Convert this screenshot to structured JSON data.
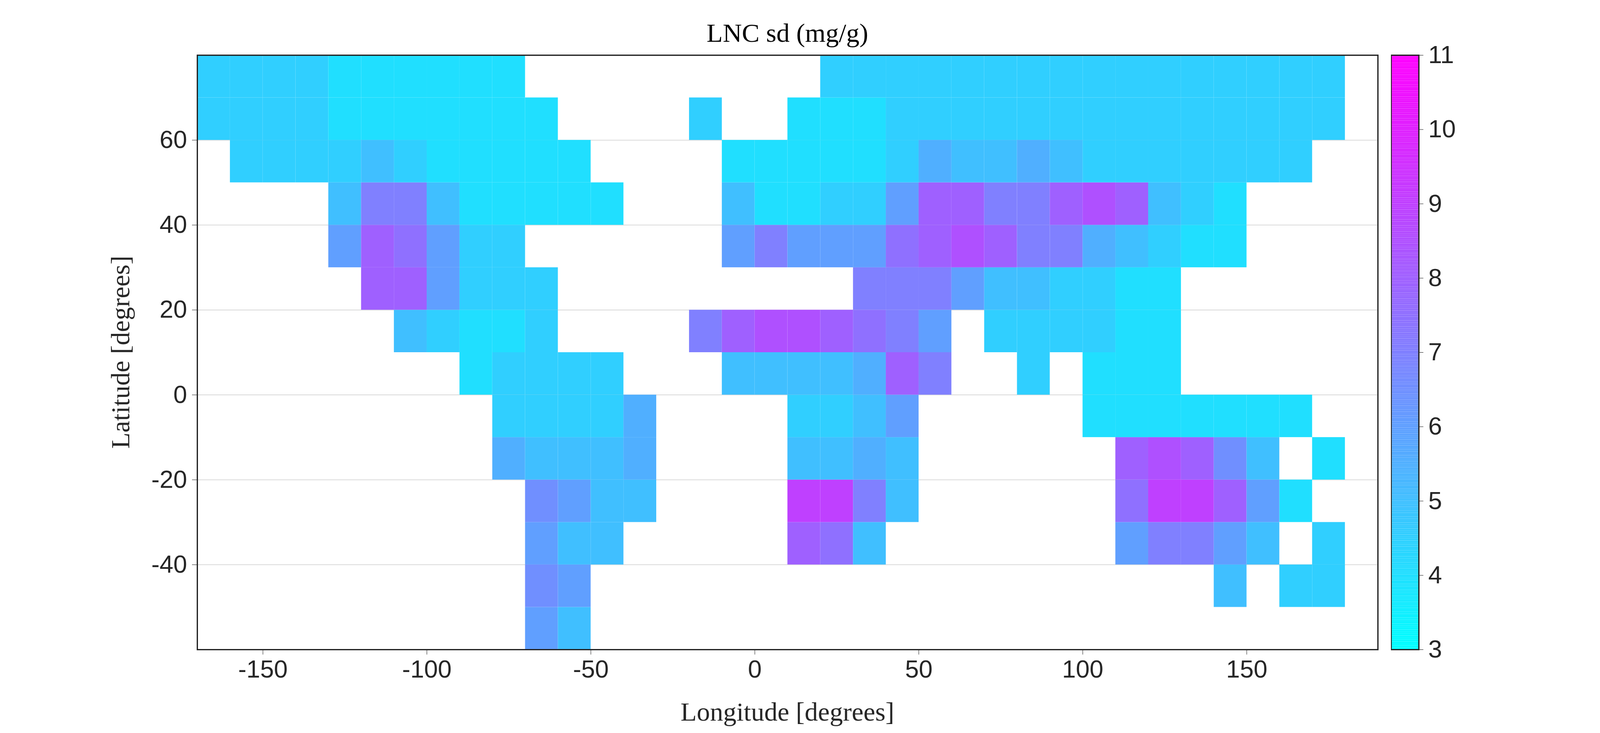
{
  "chart_data": {
    "type": "heatmap",
    "title": "LNC sd (mg/g)",
    "x_label": "Longitude [degrees]",
    "y_label": "Latitude [degrees]",
    "xlim": [
      -170,
      190
    ],
    "ylim": [
      -60,
      80
    ],
    "xticks": [
      -150,
      -100,
      -50,
      0,
      50,
      100,
      150
    ],
    "yticks": [
      -40,
      -20,
      0,
      20,
      40,
      60
    ],
    "grid": "y",
    "cells": {
      "x_bins": [
        -170,
        -160,
        -150,
        -140,
        -130,
        -120,
        -110,
        -100,
        -90,
        -80,
        -70,
        -60,
        -50,
        -40,
        -30,
        -20,
        -10,
        0,
        10,
        20,
        30,
        40,
        50,
        60,
        70,
        80,
        90,
        100,
        110,
        120,
        130,
        140,
        150,
        160,
        170,
        180,
        190
      ],
      "y_bins": [
        -60,
        -50,
        -40,
        -30,
        -20,
        -10,
        0,
        10,
        20,
        30,
        40,
        50,
        60,
        70,
        80
      ],
      "values": [
        [
          null,
          null,
          null,
          null,
          null,
          null,
          null,
          null,
          null,
          null,
          6,
          5,
          null,
          null,
          null,
          null,
          null,
          null,
          null,
          null,
          null,
          null,
          null,
          null,
          null,
          null,
          null,
          null,
          null,
          null,
          null,
          null,
          null,
          null,
          null,
          null
        ],
        [
          null,
          null,
          null,
          null,
          null,
          null,
          null,
          null,
          null,
          null,
          6.5,
          6,
          null,
          null,
          null,
          null,
          null,
          null,
          null,
          null,
          null,
          null,
          null,
          null,
          null,
          null,
          null,
          null,
          null,
          null,
          null,
          5,
          null,
          4.5,
          4.5,
          null
        ],
        [
          null,
          null,
          null,
          null,
          null,
          null,
          null,
          null,
          null,
          null,
          6,
          5,
          5,
          null,
          null,
          null,
          null,
          null,
          8,
          7.5,
          5,
          null,
          null,
          null,
          null,
          null,
          null,
          null,
          6,
          7,
          7,
          6,
          5,
          null,
          4.5,
          null
        ],
        [
          null,
          null,
          null,
          null,
          null,
          null,
          null,
          null,
          null,
          null,
          6.5,
          6,
          5,
          5,
          null,
          null,
          null,
          null,
          9,
          9,
          7,
          5,
          null,
          null,
          null,
          null,
          null,
          null,
          7.5,
          9,
          9,
          8,
          6,
          4,
          null,
          null
        ],
        [
          null,
          null,
          null,
          null,
          null,
          null,
          null,
          null,
          null,
          5.5,
          5,
          5,
          5,
          5.5,
          null,
          null,
          null,
          null,
          5,
          5,
          5.5,
          5,
          null,
          null,
          null,
          null,
          null,
          null,
          8,
          8.5,
          8,
          6.5,
          5,
          null,
          4,
          null
        ],
        [
          null,
          null,
          null,
          null,
          null,
          null,
          null,
          null,
          null,
          4.5,
          4.5,
          4.5,
          4.5,
          5.5,
          null,
          null,
          null,
          null,
          4.5,
          4.5,
          5,
          6,
          null,
          null,
          null,
          null,
          null,
          4,
          4,
          4,
          4,
          4,
          4,
          4,
          null,
          null
        ],
        [
          null,
          null,
          null,
          null,
          null,
          null,
          null,
          null,
          4,
          4.5,
          4.5,
          4.5,
          4.5,
          null,
          null,
          null,
          5,
          5,
          5,
          5,
          5.5,
          8,
          7,
          null,
          null,
          4.5,
          null,
          4,
          4,
          4,
          null,
          null,
          null,
          null,
          null,
          null
        ],
        [
          null,
          null,
          null,
          null,
          null,
          null,
          5,
          4.5,
          4,
          4,
          4.5,
          null,
          null,
          null,
          null,
          7,
          8,
          8.5,
          8.5,
          8,
          7.5,
          7,
          6,
          null,
          4.5,
          4.5,
          4.5,
          4.5,
          4,
          4,
          null,
          null,
          null,
          null,
          null,
          null
        ],
        [
          null,
          null,
          null,
          null,
          null,
          8,
          8,
          6,
          4.5,
          4.5,
          4.5,
          null,
          null,
          null,
          null,
          null,
          null,
          null,
          null,
          null,
          7,
          7,
          7,
          6,
          5,
          5,
          4.5,
          4.5,
          4,
          4,
          null,
          null,
          null,
          null,
          null,
          null
        ],
        [
          null,
          null,
          null,
          null,
          6,
          8,
          7.5,
          6,
          4.5,
          4.5,
          null,
          null,
          null,
          null,
          null,
          null,
          6,
          7,
          6,
          6,
          6,
          7.5,
          8,
          8.5,
          8,
          7,
          7,
          5.5,
          5,
          4.5,
          4,
          4,
          null,
          null,
          null,
          null
        ],
        [
          null,
          null,
          null,
          null,
          5,
          7,
          7,
          5,
          4,
          4,
          4,
          4,
          4,
          null,
          null,
          null,
          5,
          4,
          4,
          4.5,
          4.5,
          6,
          8,
          8,
          7,
          7,
          8,
          8.5,
          8,
          5,
          4.5,
          4,
          null,
          null,
          null,
          null
        ],
        [
          null,
          4.5,
          4.5,
          4.5,
          4.5,
          5,
          4.5,
          4,
          4,
          4,
          4,
          4,
          null,
          null,
          null,
          null,
          4,
          4,
          4,
          4,
          4,
          4.5,
          5.5,
          5,
          5,
          5.5,
          5,
          4.5,
          4.5,
          4.5,
          4.5,
          4.5,
          4.5,
          4.5,
          null,
          null
        ],
        [
          4.5,
          4.5,
          4.5,
          4.5,
          4,
          4,
          4,
          4,
          4,
          4,
          4,
          null,
          null,
          null,
          null,
          4.5,
          null,
          null,
          4,
          4,
          4,
          4.5,
          4.5,
          4.5,
          4.5,
          4.5,
          4.5,
          4.5,
          4.5,
          4.5,
          4.5,
          4.5,
          4.5,
          4.5,
          4.5,
          null
        ],
        [
          4.5,
          4.5,
          4.5,
          4.5,
          4,
          4,
          4,
          4,
          4,
          4,
          null,
          null,
          null,
          null,
          null,
          null,
          null,
          null,
          null,
          4.5,
          4.5,
          4.5,
          4.5,
          4.5,
          4.5,
          4.5,
          4.5,
          4.5,
          4.5,
          4.5,
          4.5,
          4.5,
          4.5,
          4.5,
          4.5,
          null
        ]
      ]
    },
    "colorbar": {
      "range": [
        3,
        11
      ],
      "ticks": [
        3,
        4,
        5,
        6,
        7,
        8,
        9,
        10,
        11
      ],
      "colors": [
        "#00ffff",
        "#ff00ff"
      ]
    }
  }
}
